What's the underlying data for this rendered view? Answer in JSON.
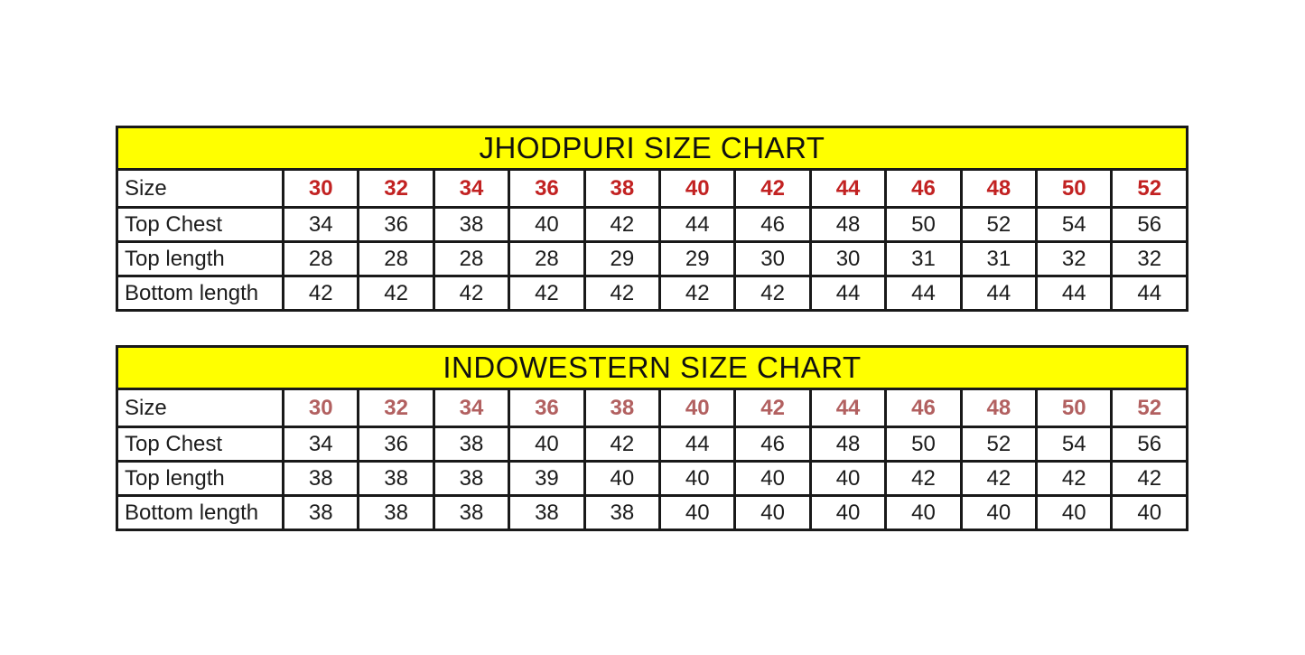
{
  "page": {
    "background_color": "#ffffff",
    "text_color": "#1c1c1c",
    "border_color": "#191919"
  },
  "chart_data": [
    {
      "type": "table",
      "title": "JHODPURI SIZE CHART",
      "title_bg": "#ffff00",
      "size_value_color": "#c22222",
      "rows": [
        {
          "label": "Size",
          "highlight": true,
          "values": [
            "30",
            "32",
            "34",
            "36",
            "38",
            "40",
            "42",
            "44",
            "46",
            "48",
            "50",
            "52"
          ]
        },
        {
          "label": "Top Chest",
          "highlight": false,
          "values": [
            "34",
            "36",
            "38",
            "40",
            "42",
            "44",
            "46",
            "48",
            "50",
            "52",
            "54",
            "56"
          ]
        },
        {
          "label": "Top length",
          "highlight": false,
          "values": [
            "28",
            "28",
            "28",
            "28",
            "29",
            "29",
            "30",
            "30",
            "31",
            "31",
            "32",
            "32"
          ]
        },
        {
          "label": "Bottom length",
          "highlight": false,
          "values": [
            "42",
            "42",
            "42",
            "42",
            "42",
            "42",
            "42",
            "44",
            "44",
            "44",
            "44",
            "44"
          ]
        }
      ]
    },
    {
      "type": "table",
      "title": "INDOWESTERN SIZE CHART",
      "title_bg": "#ffff00",
      "size_value_color": "#b26060",
      "rows": [
        {
          "label": "Size",
          "highlight": true,
          "values": [
            "30",
            "32",
            "34",
            "36",
            "38",
            "40",
            "42",
            "44",
            "46",
            "48",
            "50",
            "52"
          ]
        },
        {
          "label": "Top Chest",
          "highlight": false,
          "values": [
            "34",
            "36",
            "38",
            "40",
            "42",
            "44",
            "46",
            "48",
            "50",
            "52",
            "54",
            "56"
          ]
        },
        {
          "label": "Top length",
          "highlight": false,
          "values": [
            "38",
            "38",
            "38",
            "39",
            "40",
            "40",
            "40",
            "40",
            "42",
            "42",
            "42",
            "42"
          ]
        },
        {
          "label": "Bottom length",
          "highlight": false,
          "values": [
            "38",
            "38",
            "38",
            "38",
            "38",
            "40",
            "40",
            "40",
            "40",
            "40",
            "40",
            "40"
          ]
        }
      ]
    }
  ]
}
